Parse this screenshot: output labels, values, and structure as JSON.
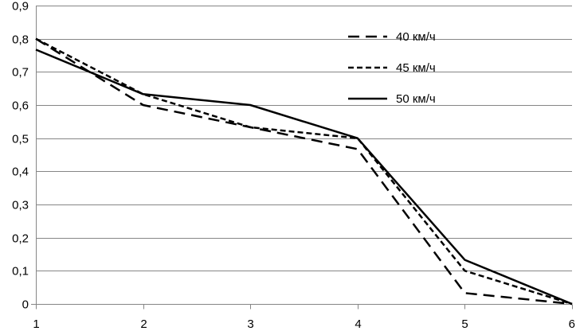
{
  "chart_data": {
    "type": "line",
    "x": [
      1,
      2,
      3,
      4,
      5,
      6
    ],
    "xticks": [
      "1",
      "2",
      "3",
      "4",
      "5",
      "6"
    ],
    "yticks": [
      "0",
      "0,1",
      "0,2",
      "0,3",
      "0,4",
      "0,5",
      "0,6",
      "0,7",
      "0,8",
      "0,9"
    ],
    "ylim": [
      0,
      0.9
    ],
    "xlim": [
      1,
      6
    ],
    "grid": "horizontal",
    "legend_position": "top-right",
    "series": [
      {
        "name": "40 км/ч",
        "style": "long-dash",
        "values": [
          0.8,
          0.6,
          0.533,
          0.467,
          0.033,
          0.0
        ]
      },
      {
        "name": "45 км/ч",
        "style": "short-dash",
        "values": [
          0.8,
          0.633,
          0.533,
          0.5,
          0.1,
          0.0
        ]
      },
      {
        "name": "50 км/ч",
        "style": "solid",
        "values": [
          0.767,
          0.633,
          0.6,
          0.5,
          0.133,
          0.0
        ]
      }
    ],
    "colors": {
      "line": "#000000",
      "grid": "#868686"
    }
  }
}
